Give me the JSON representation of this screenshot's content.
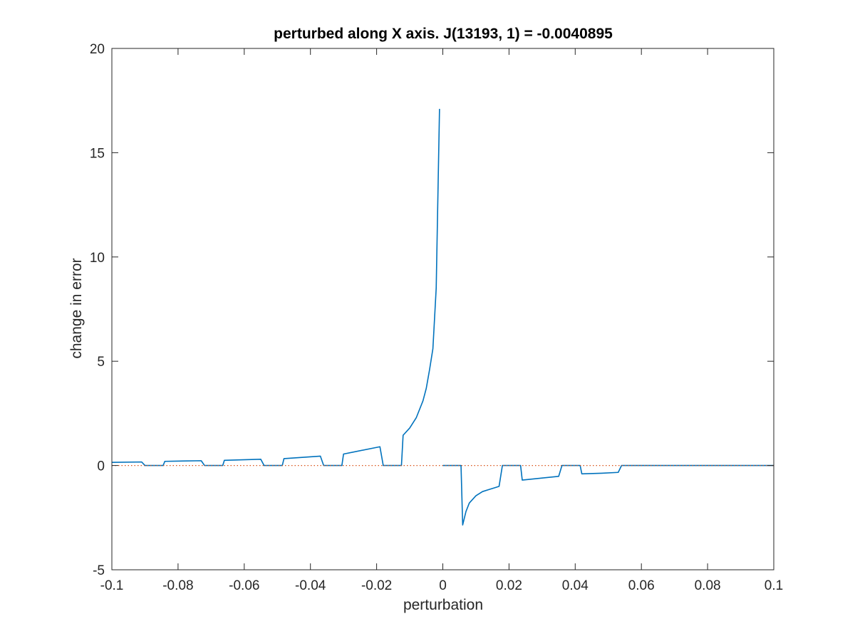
{
  "chart_data": {
    "type": "line",
    "title": "perturbed along X axis. J(13193, 1) = -0.0040895",
    "xlabel": "perturbation",
    "ylabel": "change in error",
    "xlim": [
      -0.1,
      0.1
    ],
    "ylim": [
      -5,
      20
    ],
    "x_ticks": [
      -0.1,
      -0.08,
      -0.06,
      -0.04,
      -0.02,
      0,
      0.02,
      0.04,
      0.06,
      0.08,
      0.1
    ],
    "x_tick_labels": [
      "-0.1",
      "-0.08",
      "-0.06",
      "-0.04",
      "-0.02",
      "0",
      "0.02",
      "0.04",
      "0.06",
      "0.08",
      "0.1"
    ],
    "y_ticks": [
      -5,
      0,
      5,
      10,
      15,
      20
    ],
    "y_tick_labels": [
      "-5",
      "0",
      "5",
      "10",
      "15",
      "20"
    ],
    "grid": false,
    "box": true,
    "colors": {
      "series": "#0072BD",
      "reference": "#D95319",
      "axes": "#262626"
    },
    "series": [
      {
        "style": "solid",
        "color": "#0072BD",
        "x": [
          -0.1,
          -0.091,
          -0.09,
          -0.0845,
          -0.084,
          -0.073,
          -0.072,
          -0.0665,
          -0.066,
          -0.055,
          -0.054,
          -0.0485,
          -0.048,
          -0.037,
          -0.036,
          -0.0305,
          -0.03,
          -0.019,
          -0.018,
          -0.0125,
          -0.012,
          -0.01,
          -0.008,
          -0.006,
          -0.005,
          -0.004,
          -0.003,
          -0.002,
          -0.001,
          -0.0005,
          0.0,
          0.0055,
          0.006,
          0.007,
          0.008,
          0.01,
          0.012,
          0.014,
          0.016,
          0.017,
          0.018,
          0.0235,
          0.024,
          0.03,
          0.035,
          0.036,
          0.0415,
          0.042,
          0.048,
          0.053,
          0.054,
          0.1
        ],
        "values": [
          0.15,
          0.17,
          0.0,
          0.0,
          0.2,
          0.23,
          0.0,
          0.0,
          0.25,
          0.3,
          0.0,
          0.0,
          0.33,
          0.45,
          0.0,
          0.0,
          0.55,
          0.9,
          0.0,
          0.0,
          1.45,
          1.8,
          2.3,
          3.1,
          3.7,
          4.6,
          5.6,
          8.5,
          17.1,
          null,
          0.0,
          0.0,
          -2.85,
          -2.2,
          -1.8,
          -1.45,
          -1.25,
          -1.15,
          -1.05,
          -1.0,
          0.0,
          0.0,
          -0.7,
          -0.6,
          -0.52,
          0.0,
          0.0,
          -0.4,
          -0.37,
          -0.33,
          0.0,
          0.0
        ]
      },
      {
        "style": "dotted",
        "color": "#D95319",
        "x": [
          -0.1,
          0.1
        ],
        "values": [
          0,
          0
        ]
      }
    ]
  }
}
